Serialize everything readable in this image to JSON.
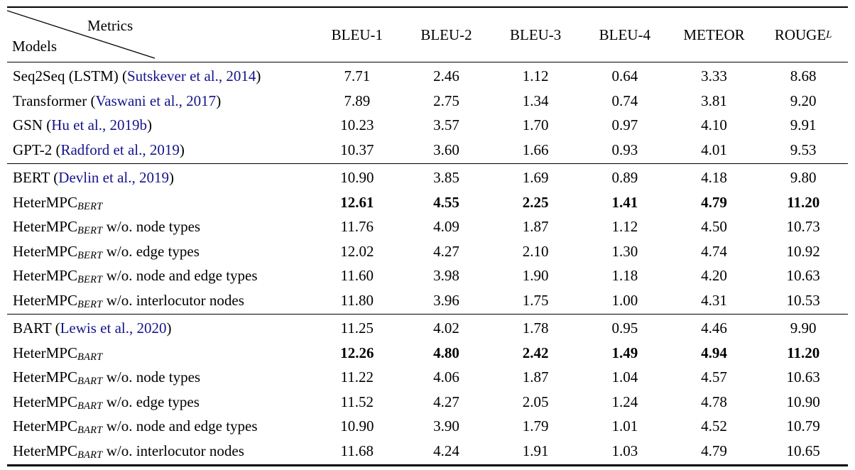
{
  "page": {
    "background": "#ffffff",
    "text_color": "#000000",
    "citation_color": "#14148b",
    "rule_color": "#000000"
  },
  "table": {
    "corner": {
      "top_right_label": "Metrics",
      "bottom_left_label": "Models"
    },
    "metric_columns": [
      {
        "label": "BLEU-1",
        "subscript": ""
      },
      {
        "label": "BLEU-2",
        "subscript": ""
      },
      {
        "label": "BLEU-3",
        "subscript": ""
      },
      {
        "label": "BLEU-4",
        "subscript": ""
      },
      {
        "label": "METEOR",
        "subscript": ""
      },
      {
        "label": "ROUGE",
        "subscript": "L"
      }
    ],
    "groups": [
      {
        "rows": [
          {
            "label_parts": [
              {
                "type": "text",
                "text": "Seq2Seq (LSTM) ("
              },
              {
                "type": "citation",
                "text": "Sutskever et al., 2014"
              },
              {
                "type": "text",
                "text": ")"
              }
            ],
            "bold_values": false,
            "values": [
              "7.71",
              "2.46",
              "1.12",
              "0.64",
              "3.33",
              "8.68"
            ]
          },
          {
            "label_parts": [
              {
                "type": "text",
                "text": "Transformer ("
              },
              {
                "type": "citation",
                "text": "Vaswani et al., 2017"
              },
              {
                "type": "text",
                "text": ")"
              }
            ],
            "bold_values": false,
            "values": [
              "7.89",
              "2.75",
              "1.34",
              "0.74",
              "3.81",
              "9.20"
            ]
          },
          {
            "label_parts": [
              {
                "type": "text",
                "text": "GSN ("
              },
              {
                "type": "citation",
                "text": "Hu et al., 2019b"
              },
              {
                "type": "text",
                "text": ")"
              }
            ],
            "bold_values": false,
            "values": [
              "10.23",
              "3.57",
              "1.70",
              "0.97",
              "4.10",
              "9.91"
            ]
          },
          {
            "label_parts": [
              {
                "type": "text",
                "text": "GPT-2 ("
              },
              {
                "type": "citation",
                "text": "Radford et al., 2019"
              },
              {
                "type": "text",
                "text": ")"
              }
            ],
            "bold_values": false,
            "values": [
              "10.37",
              "3.60",
              "1.66",
              "0.93",
              "4.01",
              "9.53"
            ]
          }
        ]
      },
      {
        "rows": [
          {
            "label_parts": [
              {
                "type": "text",
                "text": "BERT ("
              },
              {
                "type": "citation",
                "text": "Devlin et al., 2019"
              },
              {
                "type": "text",
                "text": ")"
              }
            ],
            "bold_values": false,
            "values": [
              "10.90",
              "3.85",
              "1.69",
              "0.89",
              "4.18",
              "9.80"
            ]
          },
          {
            "label_parts": [
              {
                "type": "text",
                "text": "HeterMPC"
              },
              {
                "type": "sub",
                "text": "BERT"
              }
            ],
            "bold_values": true,
            "values": [
              "12.61",
              "4.55",
              "2.25",
              "1.41",
              "4.79",
              "11.20"
            ]
          },
          {
            "label_parts": [
              {
                "type": "text",
                "text": "HeterMPC"
              },
              {
                "type": "sub",
                "text": "BERT"
              },
              {
                "type": "text",
                "text": " w/o. node types"
              }
            ],
            "bold_values": false,
            "values": [
              "11.76",
              "4.09",
              "1.87",
              "1.12",
              "4.50",
              "10.73"
            ]
          },
          {
            "label_parts": [
              {
                "type": "text",
                "text": "HeterMPC"
              },
              {
                "type": "sub",
                "text": "BERT"
              },
              {
                "type": "text",
                "text": " w/o. edge types"
              }
            ],
            "bold_values": false,
            "values": [
              "12.02",
              "4.27",
              "2.10",
              "1.30",
              "4.74",
              "10.92"
            ]
          },
          {
            "label_parts": [
              {
                "type": "text",
                "text": "HeterMPC"
              },
              {
                "type": "sub",
                "text": "BERT"
              },
              {
                "type": "text",
                "text": " w/o. node and edge types"
              }
            ],
            "bold_values": false,
            "values": [
              "11.60",
              "3.98",
              "1.90",
              "1.18",
              "4.20",
              "10.63"
            ]
          },
          {
            "label_parts": [
              {
                "type": "text",
                "text": "HeterMPC"
              },
              {
                "type": "sub",
                "text": "BERT"
              },
              {
                "type": "text",
                "text": " w/o. interlocutor nodes"
              }
            ],
            "bold_values": false,
            "values": [
              "11.80",
              "3.96",
              "1.75",
              "1.00",
              "4.31",
              "10.53"
            ]
          }
        ]
      },
      {
        "rows": [
          {
            "label_parts": [
              {
                "type": "text",
                "text": "BART ("
              },
              {
                "type": "citation",
                "text": "Lewis et al., 2020"
              },
              {
                "type": "text",
                "text": ")"
              }
            ],
            "bold_values": false,
            "values": [
              "11.25",
              "4.02",
              "1.78",
              "0.95",
              "4.46",
              "9.90"
            ]
          },
          {
            "label_parts": [
              {
                "type": "text",
                "text": "HeterMPC"
              },
              {
                "type": "sub",
                "text": "BART"
              }
            ],
            "bold_values": true,
            "values": [
              "12.26",
              "4.80",
              "2.42",
              "1.49",
              "4.94",
              "11.20"
            ]
          },
          {
            "label_parts": [
              {
                "type": "text",
                "text": "HeterMPC"
              },
              {
                "type": "sub",
                "text": "BART"
              },
              {
                "type": "text",
                "text": " w/o. node types"
              }
            ],
            "bold_values": false,
            "values": [
              "11.22",
              "4.06",
              "1.87",
              "1.04",
              "4.57",
              "10.63"
            ]
          },
          {
            "label_parts": [
              {
                "type": "text",
                "text": "HeterMPC"
              },
              {
                "type": "sub",
                "text": "BART"
              },
              {
                "type": "text",
                "text": " w/o. edge types"
              }
            ],
            "bold_values": false,
            "values": [
              "11.52",
              "4.27",
              "2.05",
              "1.24",
              "4.78",
              "10.90"
            ]
          },
          {
            "label_parts": [
              {
                "type": "text",
                "text": "HeterMPC"
              },
              {
                "type": "sub",
                "text": "BART"
              },
              {
                "type": "text",
                "text": " w/o. node and edge types"
              }
            ],
            "bold_values": false,
            "values": [
              "10.90",
              "3.90",
              "1.79",
              "1.01",
              "4.52",
              "10.79"
            ]
          },
          {
            "label_parts": [
              {
                "type": "text",
                "text": "HeterMPC"
              },
              {
                "type": "sub",
                "text": "BART"
              },
              {
                "type": "text",
                "text": " w/o. interlocutor nodes"
              }
            ],
            "bold_values": false,
            "values": [
              "11.68",
              "4.24",
              "1.91",
              "1.03",
              "4.79",
              "10.65"
            ]
          }
        ]
      }
    ]
  }
}
